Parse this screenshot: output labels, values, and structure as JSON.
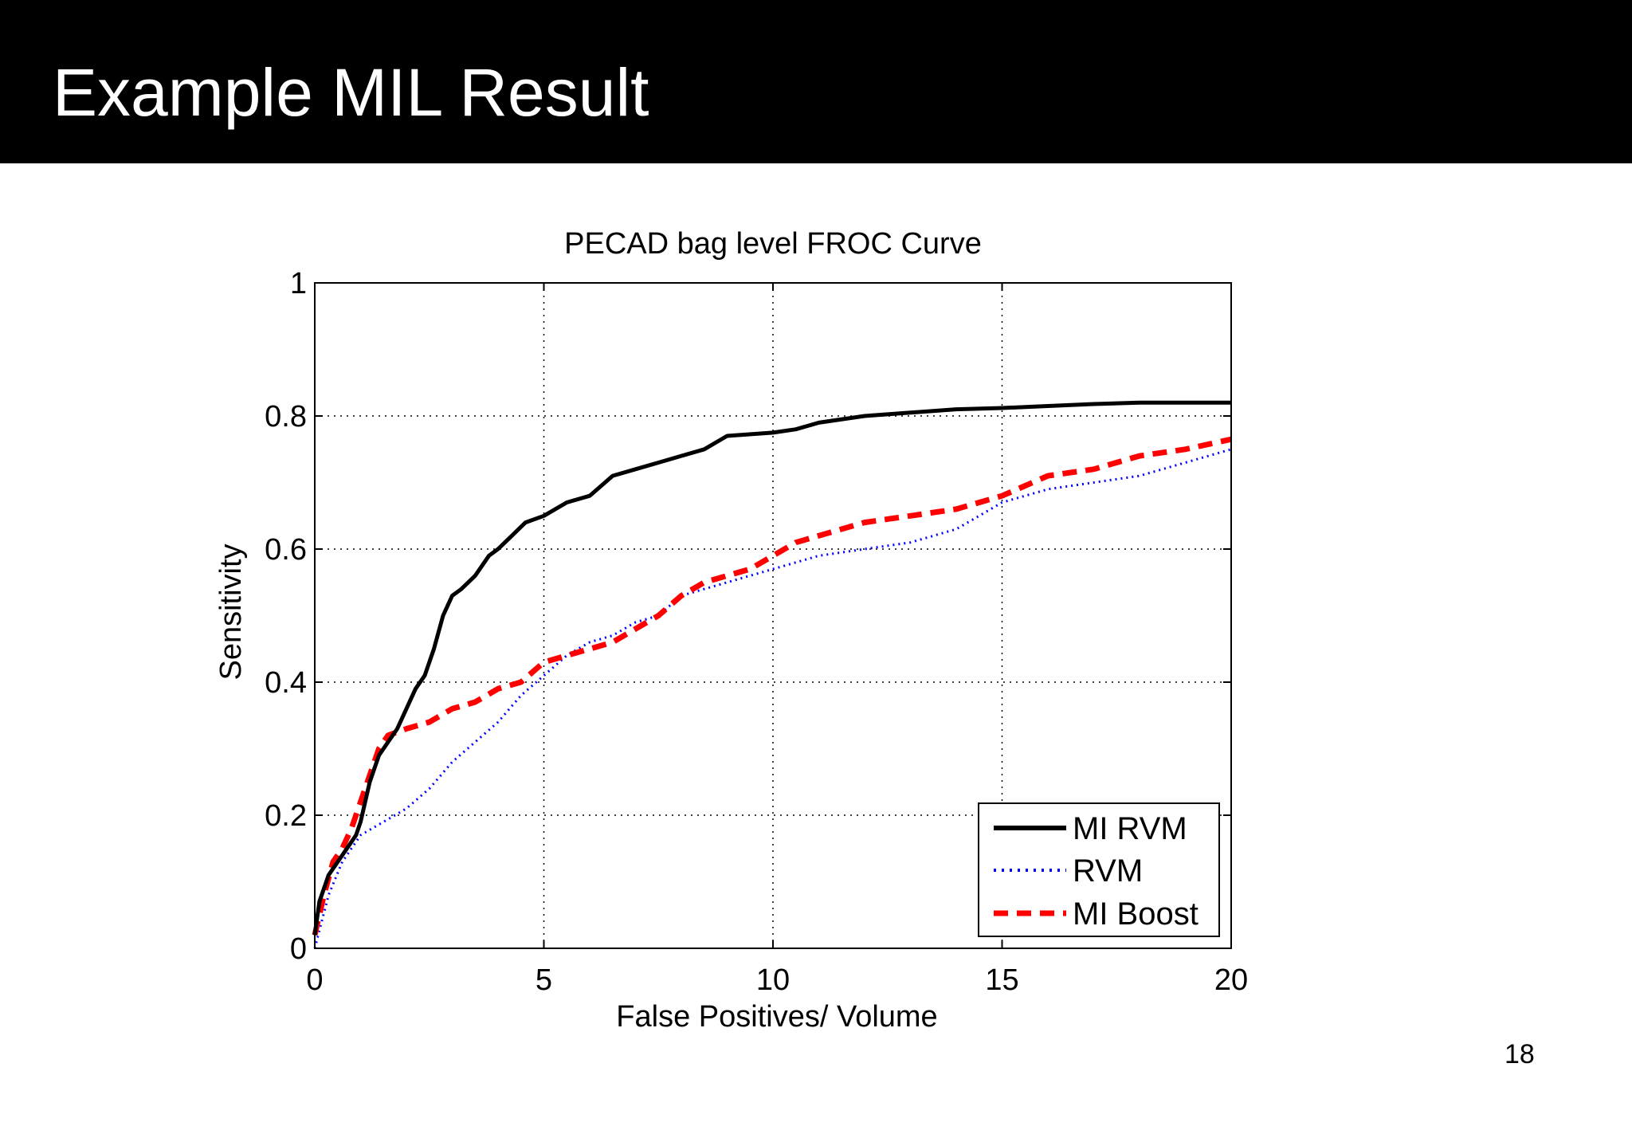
{
  "slide": {
    "title": "Example MIL Result",
    "page_number": "18"
  },
  "chart_data": {
    "type": "line",
    "title": "PECAD bag level FROC Curve",
    "xlabel": "False Positives/ Volume",
    "ylabel": "Sensitivity",
    "xlim": [
      0,
      20
    ],
    "ylim": [
      0,
      1
    ],
    "xticks": [
      0,
      5,
      10,
      15,
      20
    ],
    "xtick_labels": [
      "0",
      "5",
      "10",
      "15",
      "20"
    ],
    "yticks": [
      0,
      0.2,
      0.4,
      0.6,
      0.8,
      1
    ],
    "ytick_labels": [
      "0",
      "0.2",
      "0.4",
      "0.6",
      "0.8",
      "1"
    ],
    "grid": true,
    "legend_position": "bottom-right",
    "series": [
      {
        "name": "MI RVM",
        "color": "#000000",
        "style": "solid",
        "x": [
          0,
          0.1,
          0.3,
          0.5,
          0.7,
          0.9,
          1.0,
          1.2,
          1.4,
          1.6,
          1.8,
          2.0,
          2.2,
          2.4,
          2.6,
          2.8,
          3.0,
          3.2,
          3.5,
          3.8,
          4.0,
          4.3,
          4.6,
          5.0,
          5.5,
          6.0,
          6.5,
          7.0,
          7.5,
          8.0,
          8.5,
          9.0,
          10.0,
          10.5,
          11.0,
          12.0,
          13.0,
          14.0,
          15.0,
          16.0,
          17.0,
          18.0,
          19.0,
          20.0
        ],
        "y": [
          0.02,
          0.07,
          0.11,
          0.13,
          0.15,
          0.17,
          0.19,
          0.25,
          0.29,
          0.31,
          0.33,
          0.36,
          0.39,
          0.41,
          0.45,
          0.5,
          0.53,
          0.54,
          0.56,
          0.59,
          0.6,
          0.62,
          0.64,
          0.65,
          0.67,
          0.68,
          0.71,
          0.72,
          0.73,
          0.74,
          0.75,
          0.77,
          0.775,
          0.78,
          0.79,
          0.8,
          0.805,
          0.81,
          0.812,
          0.815,
          0.818,
          0.82,
          0.82,
          0.82
        ]
      },
      {
        "name": "RVM",
        "color": "#0000ff",
        "style": "dotted",
        "x": [
          0,
          0.3,
          0.6,
          1.0,
          1.5,
          2.0,
          2.5,
          3.0,
          3.5,
          4.0,
          4.5,
          5.0,
          5.5,
          6.0,
          6.5,
          7.0,
          7.5,
          8.0,
          9.0,
          10.0,
          11.0,
          12.0,
          13.0,
          14.0,
          14.5,
          15.0,
          16.0,
          17.0,
          18.0,
          19.0,
          20.0
        ],
        "y": [
          0.0,
          0.08,
          0.13,
          0.17,
          0.19,
          0.21,
          0.24,
          0.28,
          0.31,
          0.34,
          0.38,
          0.41,
          0.44,
          0.46,
          0.47,
          0.49,
          0.5,
          0.53,
          0.55,
          0.57,
          0.59,
          0.6,
          0.61,
          0.63,
          0.65,
          0.67,
          0.69,
          0.7,
          0.71,
          0.73,
          0.75
        ]
      },
      {
        "name": "MI Boost",
        "color": "#ff0000",
        "style": "dashed",
        "x": [
          0,
          0.2,
          0.4,
          0.6,
          0.8,
          1.0,
          1.2,
          1.4,
          1.6,
          2.0,
          2.5,
          3.0,
          3.5,
          4.0,
          4.5,
          5.0,
          5.5,
          6.0,
          6.5,
          7.0,
          7.5,
          8.0,
          8.5,
          9.0,
          9.5,
          10.0,
          10.5,
          11.0,
          12.0,
          13.0,
          14.0,
          15.0,
          16.0,
          17.0,
          18.0,
          19.0,
          20.0
        ],
        "y": [
          0.02,
          0.08,
          0.13,
          0.15,
          0.18,
          0.22,
          0.26,
          0.3,
          0.32,
          0.33,
          0.34,
          0.36,
          0.37,
          0.39,
          0.4,
          0.43,
          0.44,
          0.45,
          0.46,
          0.48,
          0.5,
          0.53,
          0.55,
          0.56,
          0.57,
          0.59,
          0.61,
          0.62,
          0.64,
          0.65,
          0.66,
          0.68,
          0.71,
          0.72,
          0.74,
          0.75,
          0.765
        ]
      }
    ]
  }
}
